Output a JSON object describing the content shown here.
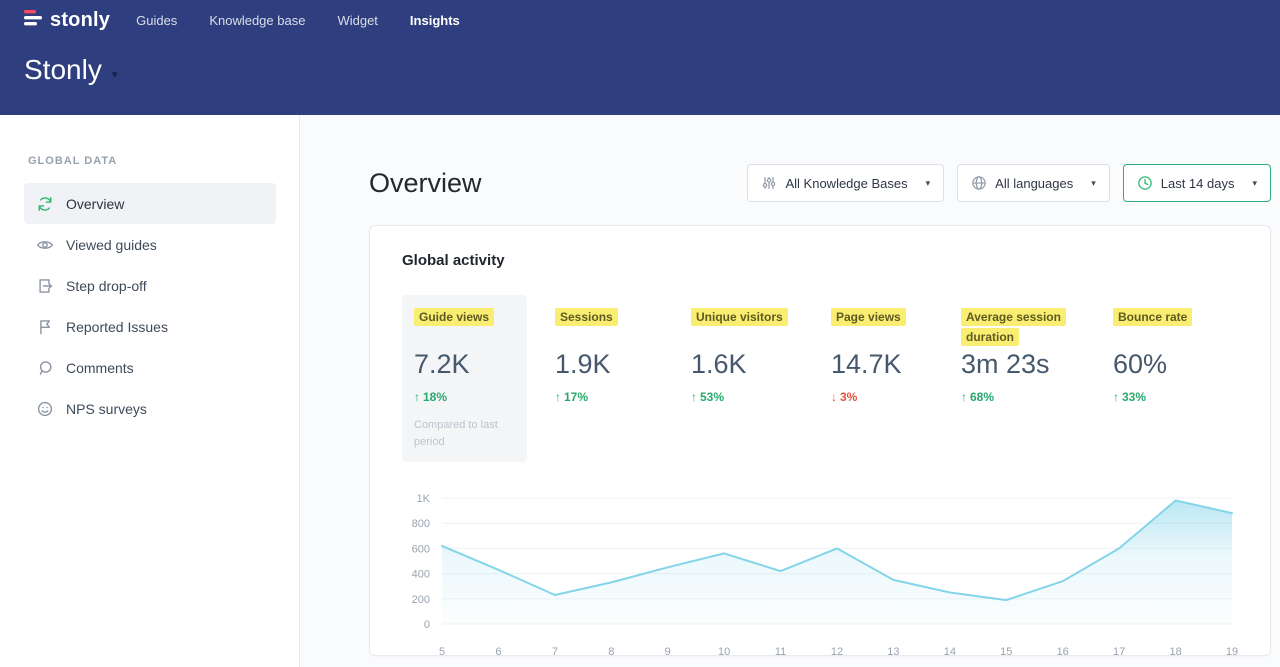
{
  "colors": {
    "header_bg": "#2e3e7e",
    "accent_green": "#2eb873",
    "negative_red": "#e3543f",
    "highlight_yellow": "#f9ee71",
    "chart_line": "#84d4ea",
    "logo_red": "#fb4b62"
  },
  "icons": {
    "caret_down": "▾"
  },
  "header": {
    "logo_text": "stonly",
    "nav": [
      {
        "label": "Guides"
      },
      {
        "label": "Knowledge base"
      },
      {
        "label": "Widget"
      },
      {
        "label": "Insights"
      }
    ],
    "workspace_title": "Stonly"
  },
  "sidebar": {
    "section_label": "GLOBAL DATA",
    "items": [
      {
        "label": "Overview",
        "icon": "overview-sync-icon",
        "active": true
      },
      {
        "label": "Viewed guides",
        "icon": "eye-icon"
      },
      {
        "label": "Step drop-off",
        "icon": "step-dropoff-icon"
      },
      {
        "label": "Reported Issues",
        "icon": "flag-icon"
      },
      {
        "label": "Comments",
        "icon": "comment-icon"
      },
      {
        "label": "NPS surveys",
        "icon": "smiley-icon"
      }
    ]
  },
  "main": {
    "page_title": "Overview",
    "filters": [
      {
        "label": "All Knowledge Bases",
        "icon": "sliders-icon"
      },
      {
        "label": "All languages",
        "icon": "globe-icon"
      },
      {
        "label": "Last 14 days",
        "icon": "clock-icon",
        "accent": true
      }
    ],
    "card": {
      "title": "Global activity",
      "metrics": [
        {
          "label": "Guide views",
          "value": "7.2K",
          "arrow": "↑",
          "delta": "18%",
          "direction": "up",
          "note": "Compared to last period",
          "selected": true
        },
        {
          "label": "Sessions",
          "value": "1.9K",
          "arrow": "↑",
          "delta": "17%",
          "direction": "up"
        },
        {
          "label": "Unique visitors",
          "value": "1.6K",
          "arrow": "↑",
          "delta": "53%",
          "direction": "up"
        },
        {
          "label": "Page views",
          "value": "14.7K",
          "arrow": "↓",
          "delta": "3%",
          "direction": "down"
        },
        {
          "label": "Average session duration",
          "value": "3m 23s",
          "arrow": "↑",
          "delta": "68%",
          "direction": "up"
        },
        {
          "label": "Bounce rate",
          "value": "60%",
          "arrow": "↑",
          "delta": "33%",
          "direction": "up"
        }
      ]
    }
  },
  "chart_data": {
    "type": "area",
    "title": "Global activity",
    "x": [
      5,
      6,
      7,
      8,
      9,
      10,
      11,
      12,
      13,
      14,
      15,
      16,
      17,
      18,
      19
    ],
    "values": [
      620,
      430,
      230,
      330,
      450,
      560,
      420,
      600,
      350,
      250,
      190,
      340,
      600,
      980,
      880
    ],
    "xlabel": "",
    "ylabel": "",
    "ylim": [
      0,
      1000
    ],
    "yticks": [
      0,
      200,
      400,
      600,
      800,
      1000
    ],
    "ytick_labels": [
      "0",
      "200",
      "400",
      "600",
      "800",
      "1K"
    ],
    "line_color": "#84d4ea",
    "grid": true,
    "legend": false
  }
}
